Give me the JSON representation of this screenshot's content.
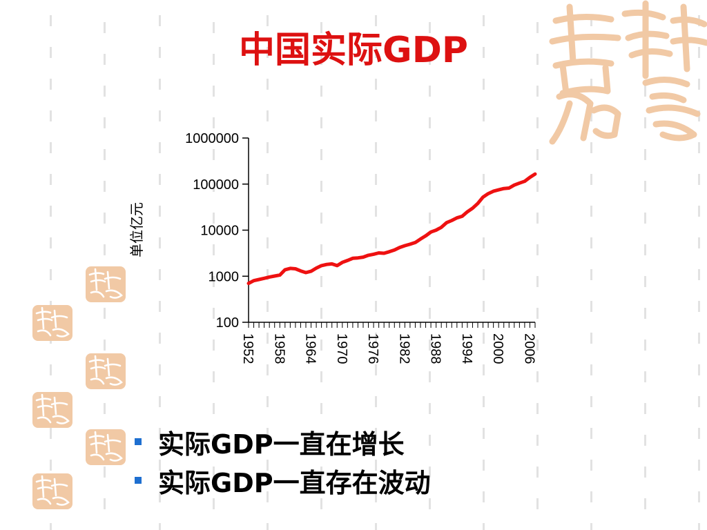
{
  "slide": {
    "title": "中国实际GDP",
    "bullets": [
      "实际GDP一直在增长",
      "实际GDP一直存在波动"
    ]
  },
  "colors": {
    "title": "#dd1111",
    "line": "#ee1111",
    "bullet": "#1e6fd0",
    "pattern": "#e2e2e2",
    "seal": "#f1c9a5",
    "seal_stroke": "#e7ab78"
  },
  "chart_data": {
    "type": "line",
    "ylabel": "单位亿元",
    "xlabel": "",
    "title": "",
    "yscale": "log",
    "ylim": [
      100,
      1000000
    ],
    "yticks": [
      100,
      1000,
      10000,
      100000,
      1000000
    ],
    "ytick_labels": [
      "100",
      "1000",
      "10000",
      "100000",
      "1000000"
    ],
    "xlim": [
      1952,
      2007
    ],
    "xticks": [
      1952,
      1958,
      1964,
      1970,
      1976,
      1982,
      1988,
      1994,
      2000,
      2006
    ],
    "xtick_labels": [
      "1952",
      "1958",
      "1964",
      "1970",
      "1976",
      "1982",
      "1988",
      "1994",
      "2000",
      "2006"
    ],
    "series": [
      {
        "x": [
          1952,
          1953,
          1954,
          1955,
          1956,
          1957,
          1958,
          1959,
          1960,
          1961,
          1962,
          1963,
          1964,
          1965,
          1966,
          1967,
          1968,
          1969,
          1970,
          1971,
          1972,
          1973,
          1974,
          1975,
          1976,
          1977,
          1978,
          1979,
          1980,
          1981,
          1982,
          1983,
          1984,
          1985,
          1986,
          1987,
          1988,
          1989,
          1990,
          1991,
          1992,
          1993,
          1994,
          1995,
          1996,
          1997,
          1998,
          1999,
          2000,
          2001,
          2002,
          2003,
          2004,
          2005,
          2006,
          2007
        ],
        "values": [
          700,
          800,
          850,
          900,
          960,
          1010,
          1060,
          1380,
          1480,
          1450,
          1300,
          1200,
          1280,
          1500,
          1700,
          1800,
          1850,
          1700,
          2000,
          2200,
          2450,
          2500,
          2600,
          2850,
          3000,
          3200,
          3150,
          3400,
          3700,
          4200,
          4600,
          4950,
          5400,
          6400,
          7500,
          9100,
          10000,
          11500,
          14500,
          16200,
          18500,
          20000,
          25000,
          30000,
          38000,
          52000,
          62000,
          70000,
          75000,
          80000,
          82000,
          95000,
          105000,
          115000,
          140000,
          165000
        ]
      }
    ]
  }
}
